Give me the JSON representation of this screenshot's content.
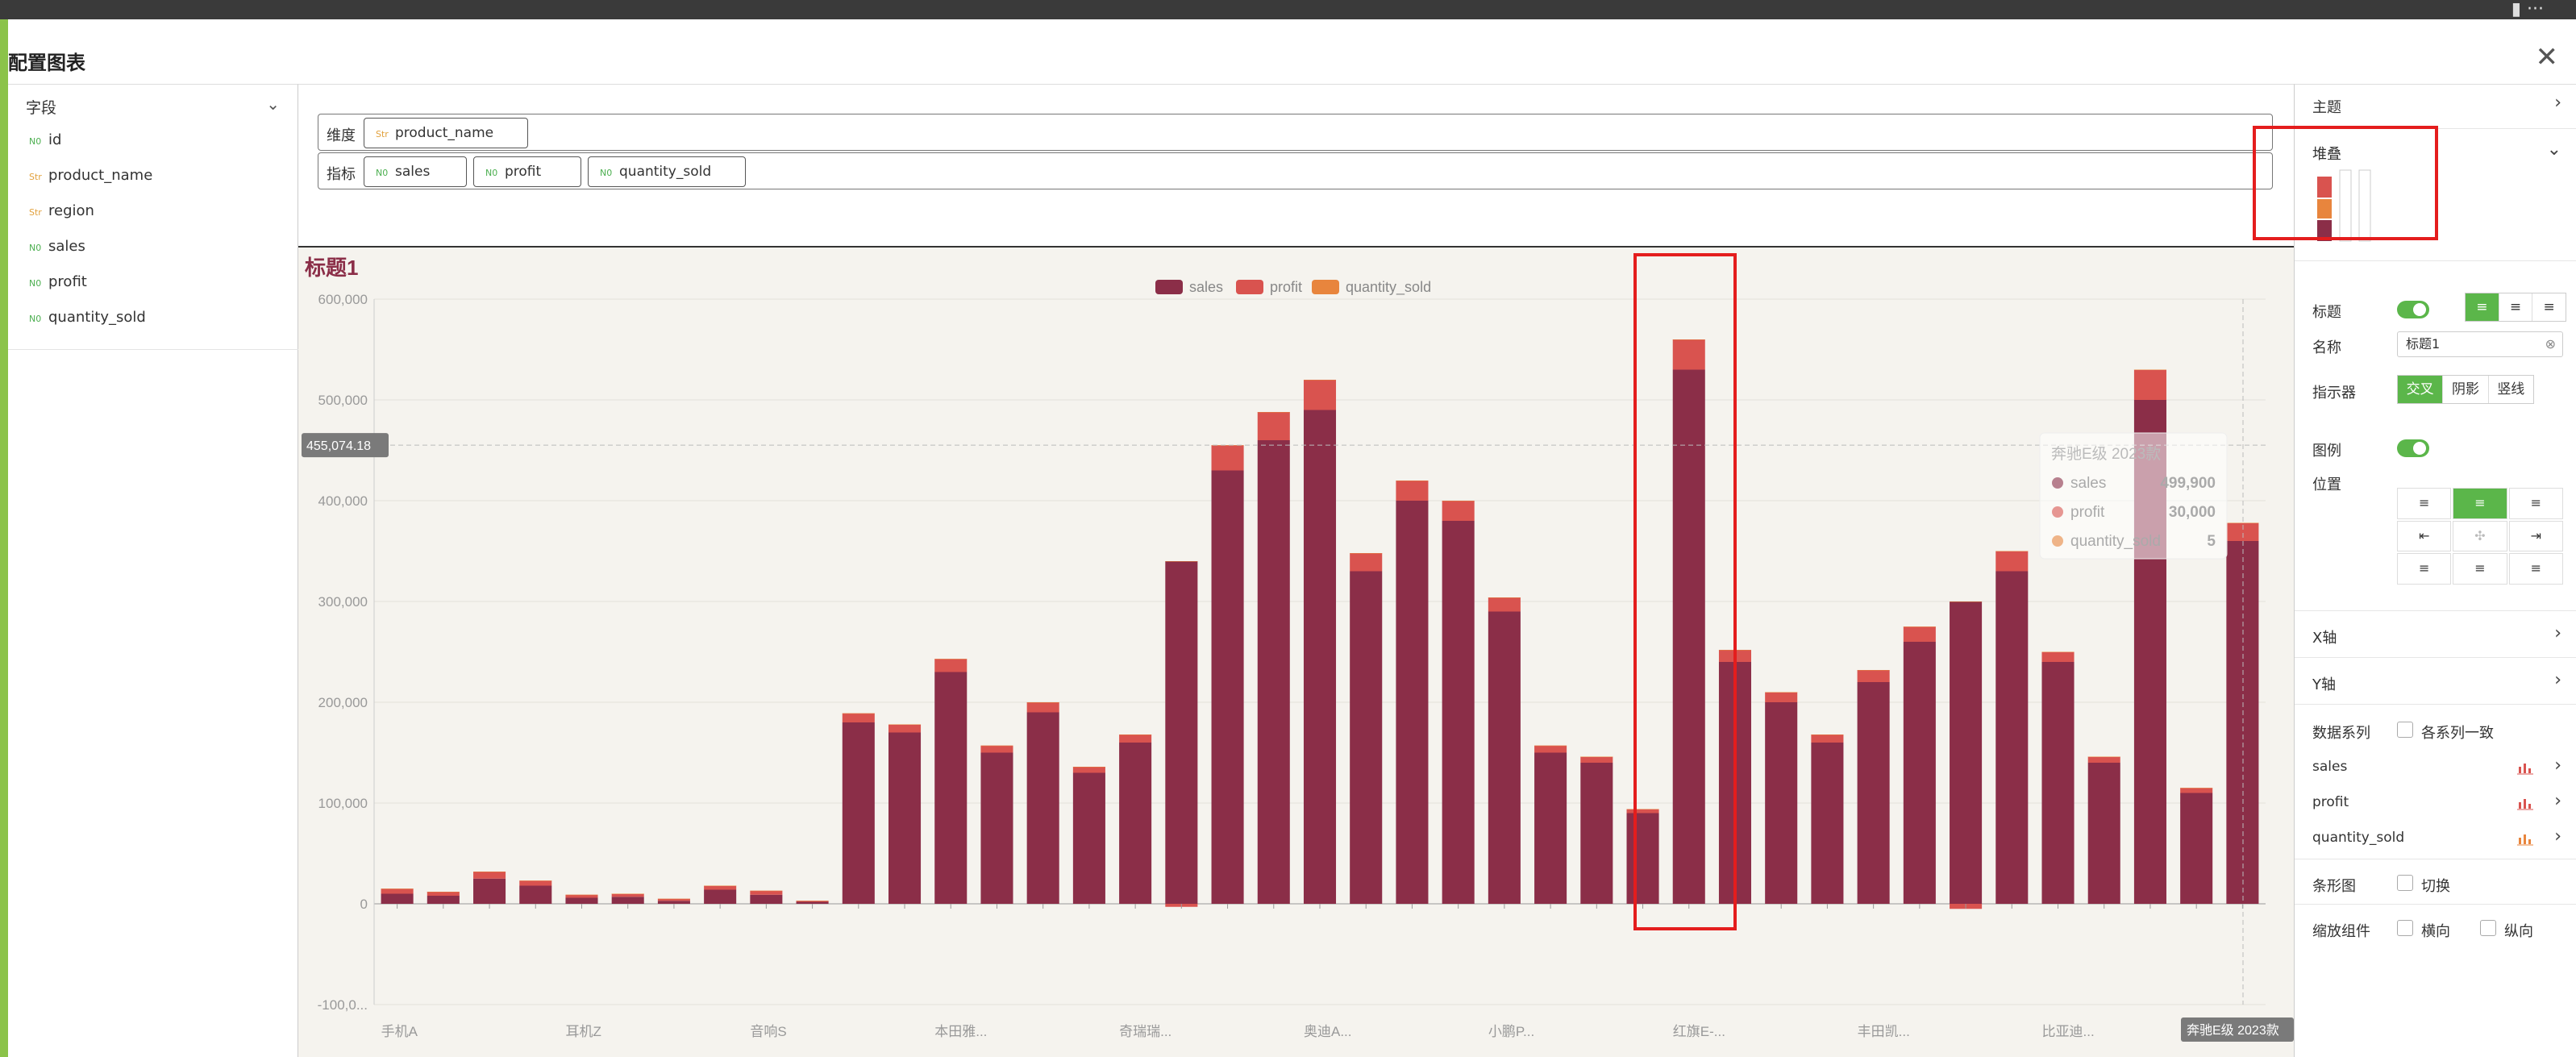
{
  "dialog": {
    "title": "配置图表"
  },
  "fields": {
    "header": "字段",
    "items": [
      {
        "type": "num",
        "type_label": "N0",
        "name": "id"
      },
      {
        "type": "str",
        "type_label": "Str",
        "name": "product_name"
      },
      {
        "type": "str",
        "type_label": "Str",
        "name": "region"
      },
      {
        "type": "num",
        "type_label": "N0",
        "name": "sales"
      },
      {
        "type": "num",
        "type_label": "N0",
        "name": "profit"
      },
      {
        "type": "num",
        "type_label": "N0",
        "name": "quantity_sold"
      }
    ]
  },
  "shelves": {
    "dimension_label": "维度",
    "dimension_pills": [
      {
        "type_label": "Str",
        "name": "product_name"
      }
    ],
    "measure_label": "指标",
    "measure_pills": [
      {
        "type_label": "N0",
        "name": "sales"
      },
      {
        "type_label": "N0",
        "name": "profit"
      },
      {
        "type_label": "N0",
        "name": "quantity_sold"
      }
    ]
  },
  "chart_data": {
    "type": "bar",
    "stacked": true,
    "title": "标题1",
    "legend_position": "top-center",
    "series_colors": {
      "sales": "#8b2e48",
      "profit": "#d9534f",
      "quantity_sold": "#e8853d"
    },
    "yticks": [
      "600,000",
      "500,000",
      "400,000",
      "300,000",
      "200,000",
      "100,000",
      "0",
      "-100,0..."
    ],
    "ylim": [
      -100000,
      600000
    ],
    "xtick_labels": [
      "手机A",
      "耳机Z",
      "音响S",
      "本田雅...",
      "奇瑞瑞...",
      "奥迪A...",
      "小鹏P...",
      "红旗E-...",
      "丰田凯...",
      "比亚迪..."
    ],
    "series": [
      {
        "name": "sales",
        "values": [
          10000,
          8000,
          25000,
          18000,
          6000,
          7000,
          3000,
          14000,
          9000,
          2000,
          180000,
          170000,
          230000,
          150000,
          190000,
          130000,
          160000,
          340000,
          430000,
          460000,
          490000,
          330000,
          400000,
          380000,
          290000,
          150000,
          140000,
          90000,
          530000,
          240000,
          200000,
          160000,
          220000,
          260000,
          300000,
          330000,
          240000,
          140000,
          500000,
          110000,
          360000
        ]
      },
      {
        "name": "profit",
        "values": [
          5000,
          4000,
          7000,
          5000,
          3000,
          3000,
          2000,
          4000,
          4000,
          1000,
          9000,
          8000,
          13000,
          7000,
          10000,
          6000,
          8000,
          -3000,
          25000,
          28000,
          30000,
          18000,
          20000,
          20000,
          14000,
          7000,
          6000,
          4000,
          30000,
          12000,
          10000,
          8000,
          12000,
          15000,
          -5000,
          20000,
          10000,
          6000,
          30000,
          5000,
          18000
        ]
      },
      {
        "name": "quantity_sold",
        "values": [
          1,
          1,
          2,
          1,
          1,
          1,
          1,
          1,
          1,
          1,
          3,
          3,
          4,
          2,
          3,
          2,
          3,
          5,
          6,
          6,
          7,
          5,
          5,
          5,
          4,
          2,
          2,
          2,
          5,
          3,
          3,
          2,
          3,
          4,
          4,
          4,
          3,
          2,
          5,
          2,
          4
        ]
      }
    ],
    "crosshair_value": "455,074.18",
    "tooltip": {
      "title": "奔驰E级 2023款",
      "rows": [
        {
          "name": "sales",
          "value": "499,900"
        },
        {
          "name": "profit",
          "value": "30,000"
        },
        {
          "name": "quantity_sold",
          "value": "5"
        }
      ]
    },
    "axis_pointer_label": "奔驰E级 2023款"
  },
  "settings": {
    "theme_label": "主题",
    "stack_label": "堆叠",
    "title_label": "标题",
    "title_enabled": true,
    "name_label": "名称",
    "name_value": "标题1",
    "indicator_label": "指示器",
    "indicator_options": [
      "交叉",
      "阴影",
      "竖线"
    ],
    "legend_label": "图例",
    "legend_enabled": true,
    "position_label": "位置",
    "xaxis_label": "X轴",
    "yaxis_label": "Y轴",
    "series_label": "数据系列",
    "series_consistent_label": "各系列一致",
    "series_items": [
      "sales",
      "profit",
      "quantity_sold"
    ],
    "bar_label": "条形图",
    "bar_switch_label": "切换",
    "zoom_label": "缩放组件",
    "zoom_h_label": "横向",
    "zoom_v_label": "纵向"
  }
}
